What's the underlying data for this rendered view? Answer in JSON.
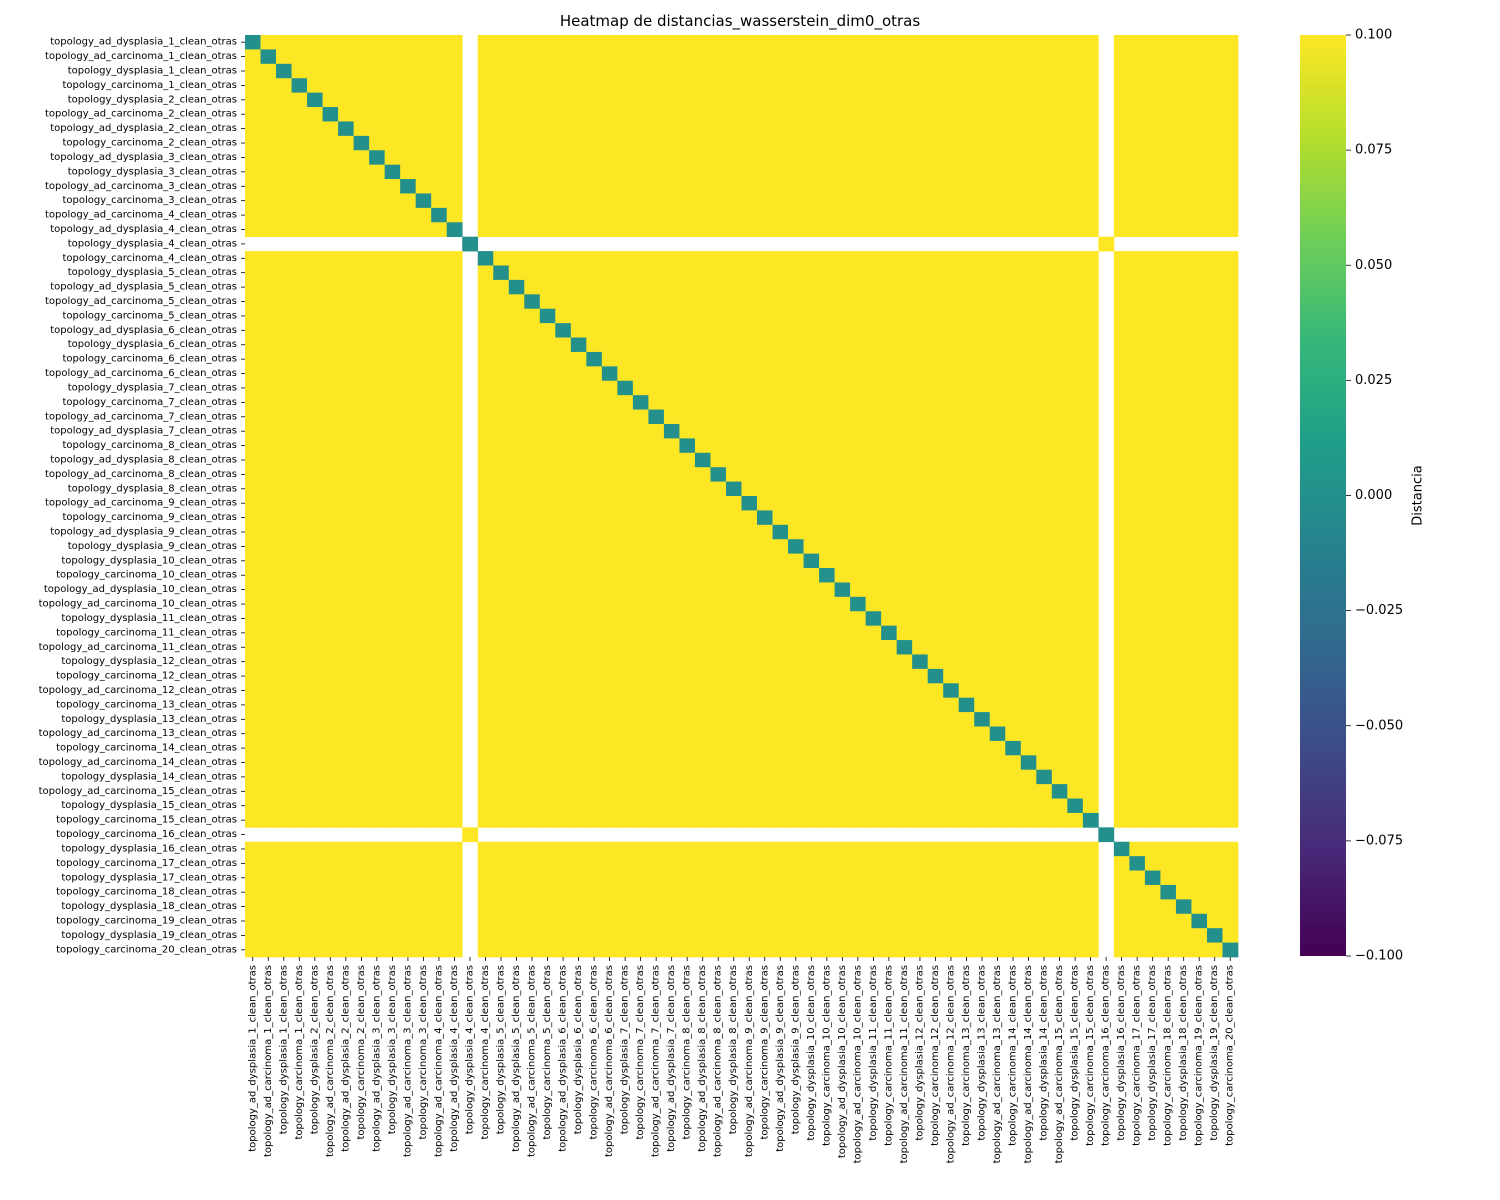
{
  "chart_data": {
    "type": "heatmap",
    "title": "Heatmap de distancias_wasserstein_dim0_otras",
    "labels": [
      "topology_ad_dysplasia_1_clean_otras",
      "topology_ad_carcinoma_1_clean_otras",
      "topology_dysplasia_1_clean_otras",
      "topology_carcinoma_1_clean_otras",
      "topology_dysplasia_2_clean_otras",
      "topology_ad_carcinoma_2_clean_otras",
      "topology_ad_dysplasia_2_clean_otras",
      "topology_carcinoma_2_clean_otras",
      "topology_ad_dysplasia_3_clean_otras",
      "topology_dysplasia_3_clean_otras",
      "topology_ad_carcinoma_3_clean_otras",
      "topology_carcinoma_3_clean_otras",
      "topology_ad_carcinoma_4_clean_otras",
      "topology_ad_dysplasia_4_clean_otras",
      "topology_dysplasia_4_clean_otras",
      "topology_carcinoma_4_clean_otras",
      "topology_dysplasia_5_clean_otras",
      "topology_ad_dysplasia_5_clean_otras",
      "topology_ad_carcinoma_5_clean_otras",
      "topology_carcinoma_5_clean_otras",
      "topology_ad_dysplasia_6_clean_otras",
      "topology_dysplasia_6_clean_otras",
      "topology_carcinoma_6_clean_otras",
      "topology_ad_carcinoma_6_clean_otras",
      "topology_dysplasia_7_clean_otras",
      "topology_carcinoma_7_clean_otras",
      "topology_ad_carcinoma_7_clean_otras",
      "topology_ad_dysplasia_7_clean_otras",
      "topology_carcinoma_8_clean_otras",
      "topology_ad_dysplasia_8_clean_otras",
      "topology_ad_carcinoma_8_clean_otras",
      "topology_dysplasia_8_clean_otras",
      "topology_ad_carcinoma_9_clean_otras",
      "topology_carcinoma_9_clean_otras",
      "topology_ad_dysplasia_9_clean_otras",
      "topology_dysplasia_9_clean_otras",
      "topology_dysplasia_10_clean_otras",
      "topology_carcinoma_10_clean_otras",
      "topology_ad_dysplasia_10_clean_otras",
      "topology_ad_carcinoma_10_clean_otras",
      "topology_dysplasia_11_clean_otras",
      "topology_carcinoma_11_clean_otras",
      "topology_ad_carcinoma_11_clean_otras",
      "topology_dysplasia_12_clean_otras",
      "topology_carcinoma_12_clean_otras",
      "topology_ad_carcinoma_12_clean_otras",
      "topology_carcinoma_13_clean_otras",
      "topology_dysplasia_13_clean_otras",
      "topology_ad_carcinoma_13_clean_otras",
      "topology_carcinoma_14_clean_otras",
      "topology_ad_carcinoma_14_clean_otras",
      "topology_dysplasia_14_clean_otras",
      "topology_ad_carcinoma_15_clean_otras",
      "topology_dysplasia_15_clean_otras",
      "topology_carcinoma_15_clean_otras",
      "topology_carcinoma_16_clean_otras",
      "topology_dysplasia_16_clean_otras",
      "topology_carcinoma_17_clean_otras",
      "topology_dysplasia_17_clean_otras",
      "topology_carcinoma_18_clean_otras",
      "topology_dysplasia_18_clean_otras",
      "topology_carcinoma_19_clean_otras",
      "topology_dysplasia_19_clean_otras",
      "topology_carcinoma_20_clean_otras"
    ],
    "cell_rules": {
      "diagonal_value": 0,
      "off_diagonal_value": 0.1,
      "missing_rows_and_columns": [
        14,
        55
      ],
      "present_pairs_within_missing": [
        [
          14,
          55
        ],
        [
          55,
          14
        ]
      ],
      "note_missing": "missing cells are not drawn (NaN)"
    },
    "colorbar": {
      "label": "Distancia",
      "vmin": -0.1,
      "vmax": 0.1,
      "ticks": [
        0.1,
        0.075,
        0.05,
        0.025,
        0.0,
        -0.025,
        -0.05,
        -0.075,
        -0.1
      ],
      "tick_labels": [
        "0.100",
        "0.075",
        "0.050",
        "0.025",
        "0.000",
        "−0.025",
        "−0.050",
        "−0.075",
        "−0.100"
      ],
      "colormap": "viridis",
      "colormap_stops": [
        "#440154",
        "#482878",
        "#3e4a89",
        "#31688e",
        "#26828e",
        "#1f9e89",
        "#35b779",
        "#6ece58",
        "#b5de2b",
        "#fde725"
      ]
    },
    "grid": false,
    "legend": "colorbar-right"
  }
}
